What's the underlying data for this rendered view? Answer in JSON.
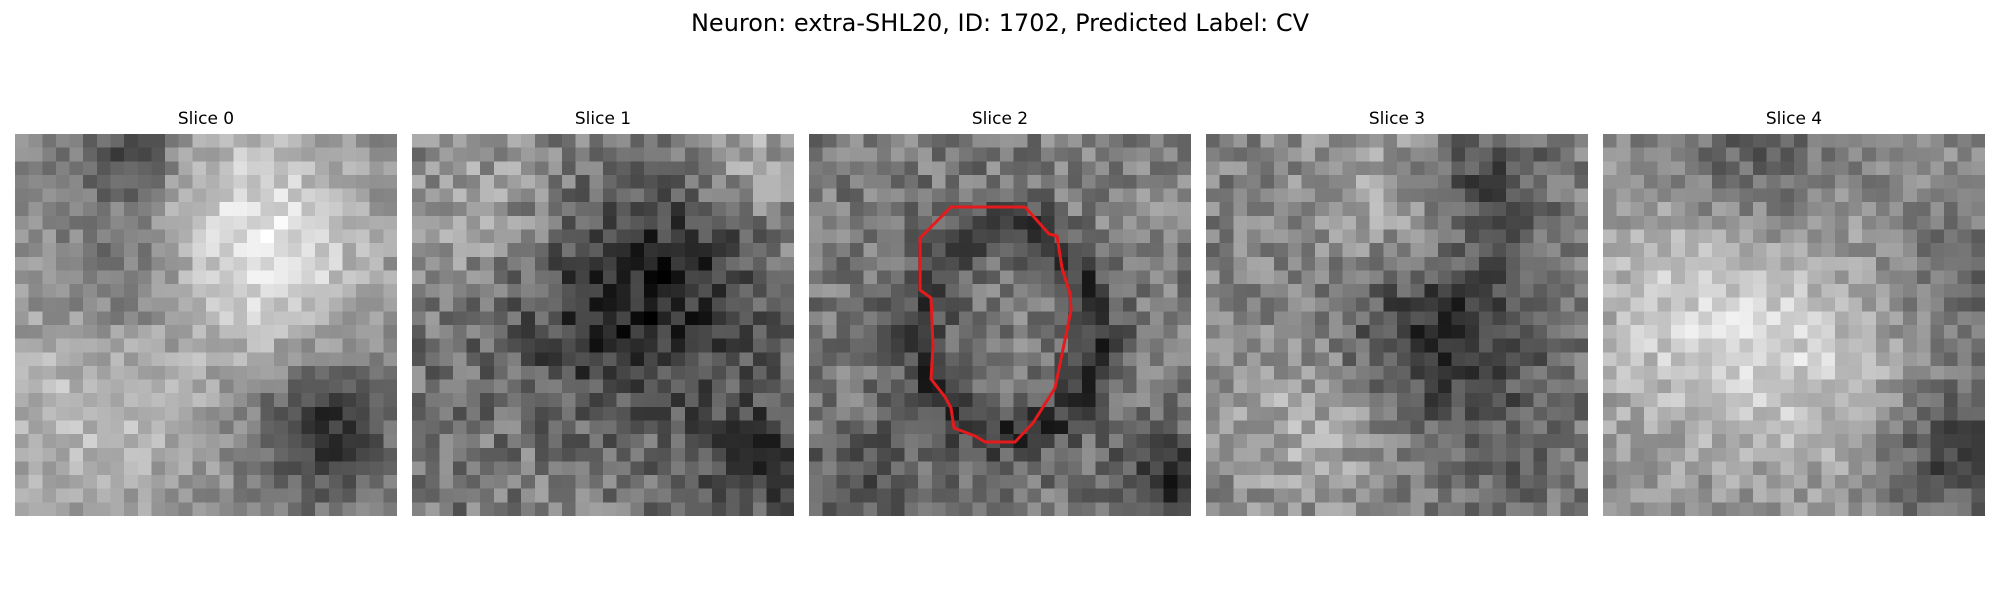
{
  "title": "Neuron: extra-SHL20, ID: 1702, Predicted Label: CV",
  "panels": [
    {
      "label": "Slice 0",
      "has_roi_outline": false
    },
    {
      "label": "Slice 1",
      "has_roi_outline": false
    },
    {
      "label": "Slice 2",
      "has_roi_outline": true
    },
    {
      "label": "Slice 3",
      "has_roi_outline": false
    },
    {
      "label": "Slice 4",
      "has_roi_outline": false
    }
  ],
  "colors": {
    "background": "#ffffff",
    "roi_outline": "#e41a1c",
    "colormap": "grayscale"
  }
}
